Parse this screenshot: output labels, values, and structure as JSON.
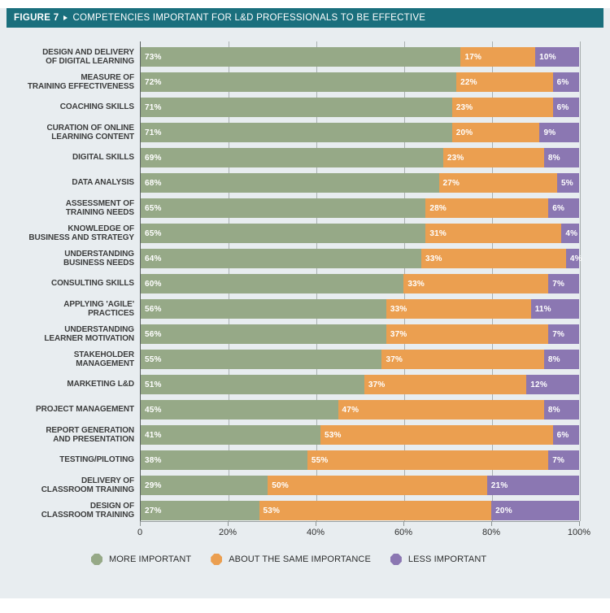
{
  "header": {
    "figure_label": "FIGURE 7",
    "title": "COMPETENCIES IMPORTANT FOR L&D PROFESSIONALS TO BE EFFECTIVE"
  },
  "colors": {
    "header_bg": "#1a6f7d",
    "panel_bg": "#e8edf0",
    "more_important": "#96a987",
    "about_same": "#eb9f50",
    "less_important": "#8b77b2",
    "gridline": "#a9b0b0",
    "axis_line": "#596060"
  },
  "chart_data": {
    "type": "bar",
    "orientation": "horizontal-stacked",
    "title": "COMPETENCIES IMPORTANT FOR L&D PROFESSIONALS TO BE EFFECTIVE",
    "xlabel": "",
    "ylabel": "",
    "xlim": [
      0,
      100
    ],
    "x_ticks": [
      "0",
      "20%",
      "40%",
      "60%",
      "80%",
      "100%"
    ],
    "grid": "vertical",
    "legend_position": "bottom",
    "value_suffix": "%",
    "categories": [
      [
        "DESIGN AND DELIVERY",
        "OF DIGITAL LEARNING"
      ],
      [
        "MEASURE OF",
        "TRAINING EFFECTIVENESS"
      ],
      [
        "COACHING SKILLS"
      ],
      [
        "CURATION OF ONLINE",
        "LEARNING CONTENT"
      ],
      [
        "DIGITAL SKILLS"
      ],
      [
        "DATA ANALYSIS"
      ],
      [
        "ASSESSMENT OF",
        "TRAINING NEEDS"
      ],
      [
        "KNOWLEDGE OF",
        "BUSINESS AND STRATEGY"
      ],
      [
        "UNDERSTANDING",
        "BUSINESS NEEDS"
      ],
      [
        "CONSULTING SKILLS"
      ],
      [
        "APPLYING 'AGILE'",
        "PRACTICES"
      ],
      [
        "UNDERSTANDING",
        "LEARNER MOTIVATION"
      ],
      [
        "STAKEHOLDER",
        "MANAGEMENT"
      ],
      [
        "MARKETING L&D"
      ],
      [
        "PROJECT MANAGEMENT"
      ],
      [
        "REPORT GENERATION",
        "AND PRESENTATION"
      ],
      [
        "TESTING/PILOTING"
      ],
      [
        "DELIVERY OF",
        "CLASSROOM TRAINING"
      ],
      [
        "DESIGN OF",
        "CLASSROOM TRAINING"
      ]
    ],
    "series": [
      {
        "name": "MORE IMPORTANT",
        "color": "#96a987",
        "values": [
          73,
          72,
          71,
          71,
          69,
          68,
          65,
          65,
          64,
          60,
          56,
          56,
          55,
          51,
          45,
          41,
          38,
          29,
          27
        ]
      },
      {
        "name": "ABOUT THE SAME IMPORTANCE",
        "color": "#eb9f50",
        "values": [
          17,
          22,
          23,
          20,
          23,
          27,
          28,
          31,
          33,
          33,
          33,
          37,
          37,
          37,
          47,
          53,
          55,
          50,
          53
        ]
      },
      {
        "name": "LESS IMPORTANT",
        "color": "#8b77b2",
        "values": [
          10,
          6,
          6,
          9,
          8,
          5,
          6,
          4,
          4,
          7,
          11,
          7,
          8,
          12,
          8,
          6,
          7,
          21,
          20
        ]
      }
    ]
  }
}
